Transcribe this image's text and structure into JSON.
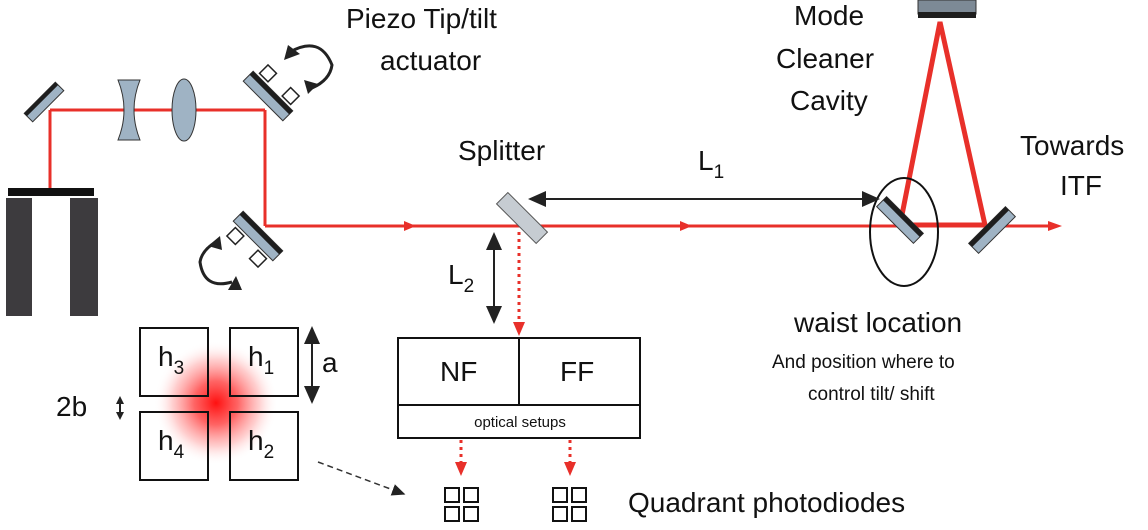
{
  "labels": {
    "piezo_line1": "Piezo Tip/tilt",
    "piezo_line2": "actuator",
    "mc_line1": "Mode",
    "mc_line2": "Cleaner",
    "mc_line3": "Cavity",
    "towards_line1": "Towards",
    "towards_line2": "ITF",
    "splitter": "Splitter",
    "l1_main": "L",
    "l1_sub": "1",
    "l2_main": "L",
    "l2_sub": "2",
    "waist": "waist location",
    "waist_note1": "And position where to",
    "waist_note2": "control tilt/ shift",
    "nf": "NF",
    "ff": "FF",
    "optical_setups": "optical setups",
    "quadrant_photodiodes": "Quadrant photodiodes",
    "a": "a",
    "two_b": "2b",
    "h3": "h",
    "h3_sub": "3",
    "h1": "h",
    "h1_sub": "1",
    "h4": "h",
    "h4_sub": "4",
    "h2": "h",
    "h2_sub": "2"
  },
  "colors": {
    "beam": "#e8302a",
    "mirror_fill": "#9fb3c4",
    "mirror_coat": "#1e1e1e",
    "laser_body": "#3d3b3e",
    "spot": "#ff2020"
  }
}
